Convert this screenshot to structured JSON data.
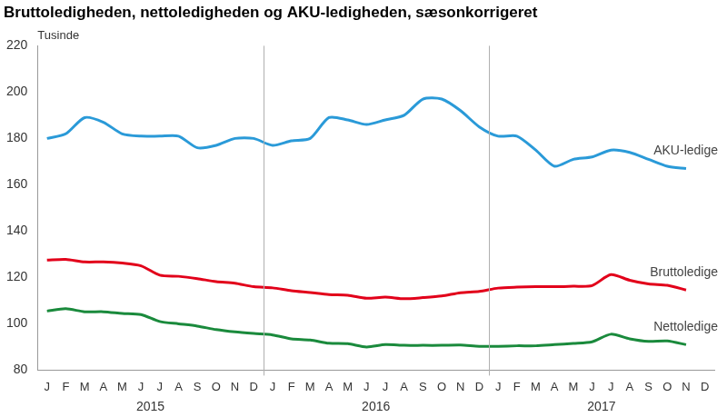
{
  "chart_data": {
    "type": "line",
    "title": "Bruttoledigheden, nettoledigheden og AKU-ledigheden, sæsonkorrigeret",
    "ylabel": "Tusinde",
    "categories": [
      "J",
      "F",
      "M",
      "A",
      "M",
      "J",
      "J",
      "A",
      "S",
      "O",
      "N",
      "D",
      "J",
      "F",
      "M",
      "A",
      "M",
      "J",
      "J",
      "A",
      "S",
      "O",
      "N",
      "D",
      "J",
      "F",
      "M",
      "A",
      "M",
      "J",
      "J",
      "A",
      "S",
      "O",
      "N",
      "D"
    ],
    "year_labels": [
      "2015",
      "2016",
      "2017"
    ],
    "series": [
      {
        "name": "AKU-ledige",
        "color": "#2a9ad8",
        "values": [
          180,
          182,
          189,
          187,
          182,
          181,
          181,
          181,
          176,
          177,
          180,
          180,
          177,
          179,
          180,
          189,
          188,
          186,
          188,
          190,
          197,
          197,
          192,
          185,
          181,
          181,
          175,
          168,
          171,
          172,
          175,
          174,
          171,
          168,
          167,
          null
        ]
      },
      {
        "name": "Bruttoledige",
        "color": "#e2001a",
        "values": [
          127.5,
          127.8,
          126.7,
          126.7,
          126.2,
          125,
          121,
          120.5,
          119.5,
          118.2,
          117.5,
          116,
          115.5,
          114.3,
          113.5,
          112.6,
          112.3,
          111,
          111.5,
          110.8,
          111.3,
          112,
          113.4,
          114,
          115.4,
          115.8,
          116,
          116,
          116.2,
          116.5,
          121.2,
          118.8,
          117.2,
          116.6,
          114.6,
          null
        ]
      },
      {
        "name": "Nettoledige",
        "color": "#1a8a3c",
        "values": [
          105.5,
          106.5,
          105.2,
          105.2,
          104.5,
          104,
          101,
          100,
          99,
          97.5,
          96.5,
          95.8,
          95.2,
          93.5,
          93,
          91.6,
          91.4,
          90,
          91,
          90.7,
          90.7,
          90.7,
          90.8,
          90.3,
          90.3,
          90.5,
          90.5,
          91,
          91.5,
          92.2,
          95.5,
          93.5,
          92.4,
          92.6,
          91,
          null
        ]
      }
    ],
    "ylim": [
      80,
      220
    ],
    "yticks": [
      80,
      100,
      120,
      140,
      160,
      180,
      200,
      220
    ],
    "grid": false
  }
}
